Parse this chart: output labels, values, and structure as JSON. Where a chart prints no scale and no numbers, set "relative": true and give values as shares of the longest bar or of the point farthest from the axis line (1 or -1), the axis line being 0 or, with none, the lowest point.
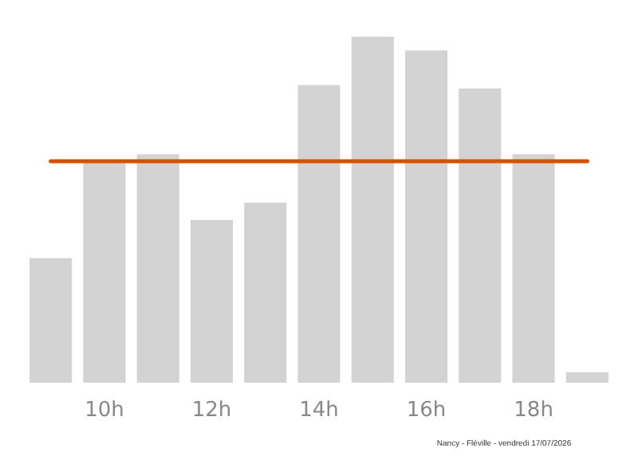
{
  "chart_data": {
    "type": "bar",
    "relative": true,
    "categories": [
      null,
      "10h",
      null,
      "12h",
      null,
      "14h",
      null,
      "16h",
      null,
      "18h",
      null
    ],
    "values": [
      0.36,
      0.64,
      0.66,
      0.47,
      0.52,
      0.86,
      1,
      0.96,
      0.85,
      0.66,
      0.03
    ],
    "color": "#d3d3d3",
    "ref_lines": [
      {
        "axis": "y",
        "value": 0.64,
        "color": "#d35400"
      }
    ],
    "grid": false,
    "legend": false,
    "annotations": [
      "Nancy - Fléville - vendredi 17/07/2026"
    ]
  }
}
